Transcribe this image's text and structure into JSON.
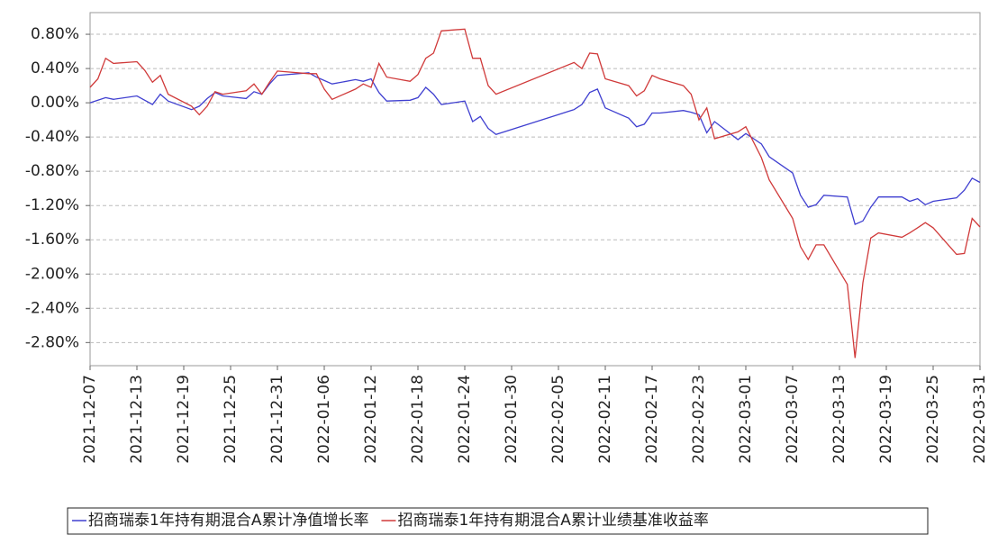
{
  "chart_data": {
    "type": "line",
    "x": [
      "2021-12-07",
      "2021-12-08",
      "2021-12-09",
      "2021-12-10",
      "2021-12-13",
      "2021-12-14",
      "2021-12-15",
      "2021-12-16",
      "2021-12-17",
      "2021-12-20",
      "2021-12-21",
      "2021-12-22",
      "2021-12-23",
      "2021-12-24",
      "2021-12-27",
      "2021-12-28",
      "2021-12-29",
      "2021-12-30",
      "2021-12-31",
      "2022-01-04",
      "2022-01-05",
      "2022-01-06",
      "2022-01-07",
      "2022-01-10",
      "2022-01-11",
      "2022-01-12",
      "2022-01-13",
      "2022-01-14",
      "2022-01-17",
      "2022-01-18",
      "2022-01-19",
      "2022-01-20",
      "2022-01-21",
      "2022-01-24",
      "2022-01-25",
      "2022-01-26",
      "2022-01-27",
      "2022-01-28",
      "2022-02-07",
      "2022-02-08",
      "2022-02-09",
      "2022-02-10",
      "2022-02-11",
      "2022-02-14",
      "2022-02-15",
      "2022-02-16",
      "2022-02-17",
      "2022-02-18",
      "2022-02-21",
      "2022-02-22",
      "2022-02-23",
      "2022-02-24",
      "2022-02-25",
      "2022-02-28",
      "2022-03-01",
      "2022-03-02",
      "2022-03-03",
      "2022-03-04",
      "2022-03-07",
      "2022-03-08",
      "2022-03-09",
      "2022-03-10",
      "2022-03-11",
      "2022-03-14",
      "2022-03-15",
      "2022-03-16",
      "2022-03-17",
      "2022-03-18",
      "2022-03-21",
      "2022-03-22",
      "2022-03-23",
      "2022-03-24",
      "2022-03-25",
      "2022-03-28",
      "2022-03-29",
      "2022-03-30",
      "2022-03-31"
    ],
    "series": [
      {
        "name": "招商瑞泰1年持有期混合A累计净值增长率",
        "color": "#3f3fd0",
        "values": [
          0.0,
          0.03,
          0.06,
          0.04,
          0.08,
          0.03,
          -0.02,
          0.1,
          0.02,
          -0.08,
          -0.04,
          0.05,
          0.12,
          0.08,
          0.05,
          0.13,
          0.1,
          0.22,
          0.32,
          0.35,
          0.3,
          0.26,
          0.22,
          0.27,
          0.25,
          0.28,
          0.12,
          0.02,
          0.03,
          0.06,
          0.18,
          0.1,
          -0.02,
          0.02,
          -0.22,
          -0.16,
          -0.3,
          -0.37,
          -0.08,
          -0.02,
          0.12,
          0.16,
          -0.06,
          -0.18,
          -0.28,
          -0.25,
          -0.12,
          -0.12,
          -0.09,
          -0.11,
          -0.14,
          -0.35,
          -0.22,
          -0.43,
          -0.36,
          -0.42,
          -0.48,
          -0.63,
          -0.82,
          -1.08,
          -1.22,
          -1.19,
          -1.08,
          -1.1,
          -1.42,
          -1.38,
          -1.22,
          -1.1,
          -1.1,
          -1.15,
          -1.12,
          -1.19,
          -1.15,
          -1.11,
          -1.02,
          -0.88,
          -0.93
        ]
      },
      {
        "name": "招商瑞泰1年持有期混合A累计业绩基准收益率",
        "color": "#d03a3a",
        "values": [
          0.18,
          0.28,
          0.52,
          0.46,
          0.48,
          0.38,
          0.24,
          0.32,
          0.1,
          -0.04,
          -0.14,
          -0.04,
          0.13,
          0.1,
          0.14,
          0.22,
          0.1,
          0.24,
          0.37,
          0.34,
          0.34,
          0.16,
          0.04,
          0.16,
          0.22,
          0.18,
          0.46,
          0.3,
          0.25,
          0.33,
          0.52,
          0.58,
          0.84,
          0.86,
          0.52,
          0.52,
          0.2,
          0.1,
          0.47,
          0.4,
          0.58,
          0.57,
          0.28,
          0.2,
          0.08,
          0.14,
          0.32,
          0.28,
          0.2,
          0.1,
          -0.2,
          -0.06,
          -0.42,
          -0.34,
          -0.28,
          -0.46,
          -0.64,
          -0.9,
          -1.35,
          -1.68,
          -1.83,
          -1.66,
          -1.66,
          -2.12,
          -2.98,
          -2.1,
          -1.58,
          -1.52,
          -1.57,
          -1.52,
          -1.46,
          -1.4,
          -1.46,
          -1.77,
          -1.76,
          -1.35,
          -1.45
        ]
      }
    ],
    "xlim": [
      "2021-12-07",
      "2022-03-31"
    ],
    "xticks": [
      "2021-12-07",
      "2021-12-13",
      "2021-12-19",
      "2021-12-25",
      "2021-12-31",
      "2022-01-06",
      "2022-01-12",
      "2022-01-18",
      "2022-01-24",
      "2022-01-30",
      "2022-02-05",
      "2022-02-11",
      "2022-02-17",
      "2022-02-23",
      "2022-03-01",
      "2022-03-07",
      "2022-03-13",
      "2022-03-19",
      "2022-03-25",
      "2022-03-31"
    ],
    "ylim": [
      -3.07,
      1.053
    ],
    "yticks": [
      {
        "value": 0.8,
        "label": "0.80%"
      },
      {
        "value": 0.4,
        "label": "0.40%"
      },
      {
        "value": 0,
        "label": "0.00%"
      },
      {
        "value": -0.4,
        "label": "-0.40%"
      },
      {
        "value": -0.8,
        "label": "-0.80%"
      },
      {
        "value": -1.2,
        "label": "-1.20%"
      },
      {
        "value": -1.6,
        "label": "-1.60%"
      },
      {
        "value": -2.0,
        "label": "-2.00%"
      },
      {
        "value": -2.4,
        "label": "-2.40%"
      },
      {
        "value": -2.8,
        "label": "-2.80%"
      }
    ],
    "grid": true,
    "legend": "bottom"
  }
}
